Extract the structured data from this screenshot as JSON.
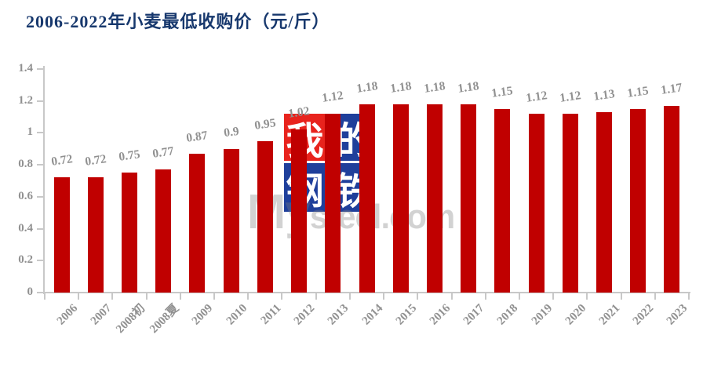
{
  "title": {
    "text": "2006-2022年小麦最低收购价（元/斤）"
  },
  "watermark": {
    "logo_chars": [
      "我",
      "的",
      "钢",
      "铁"
    ],
    "text_big": "My",
    "text_small": "steel.com"
  },
  "colors": {
    "bar": "#C00000",
    "title": "#17386D",
    "gray_text": "#919191",
    "axis": "#C8C8C8",
    "logo_red": "#E8231D",
    "logo_blue": "#1F3F9B",
    "logo_char": "#FFFFFF",
    "background": "#FFFFFF"
  },
  "chart_data": {
    "type": "bar",
    "title": "2006-2022年小麦最低收购价（元/斤）",
    "xlabel": "",
    "ylabel": "",
    "categories": [
      "2006",
      "2007",
      "2008初",
      "2008夏",
      "2009",
      "2010",
      "2011",
      "2012",
      "2013",
      "2014",
      "2015",
      "2016",
      "2017",
      "2018",
      "2019",
      "2020",
      "2021",
      "2022",
      "2023"
    ],
    "values": [
      0.72,
      0.72,
      0.75,
      0.77,
      0.87,
      0.9,
      0.95,
      1.02,
      1.12,
      1.18,
      1.18,
      1.18,
      1.18,
      1.15,
      1.12,
      1.12,
      1.13,
      1.15,
      1.17
    ],
    "value_labels": [
      "0.72",
      "0.72",
      "0.75",
      "0.77",
      "0.87",
      "0.9",
      "0.95",
      "1.02",
      "1.12",
      "1.18",
      "1.18",
      "1.18",
      "1.18",
      "1.15",
      "1.12",
      "1.12",
      "1.13",
      "1.15",
      "1.17"
    ],
    "ylim": [
      0,
      1.4
    ],
    "ytick_labels": [
      "0",
      "0.2",
      "0.4",
      "0.6",
      "0.8",
      "1",
      "1.2",
      "1.4"
    ],
    "grid": false,
    "legend": "none",
    "bar_color": "#C00000"
  }
}
